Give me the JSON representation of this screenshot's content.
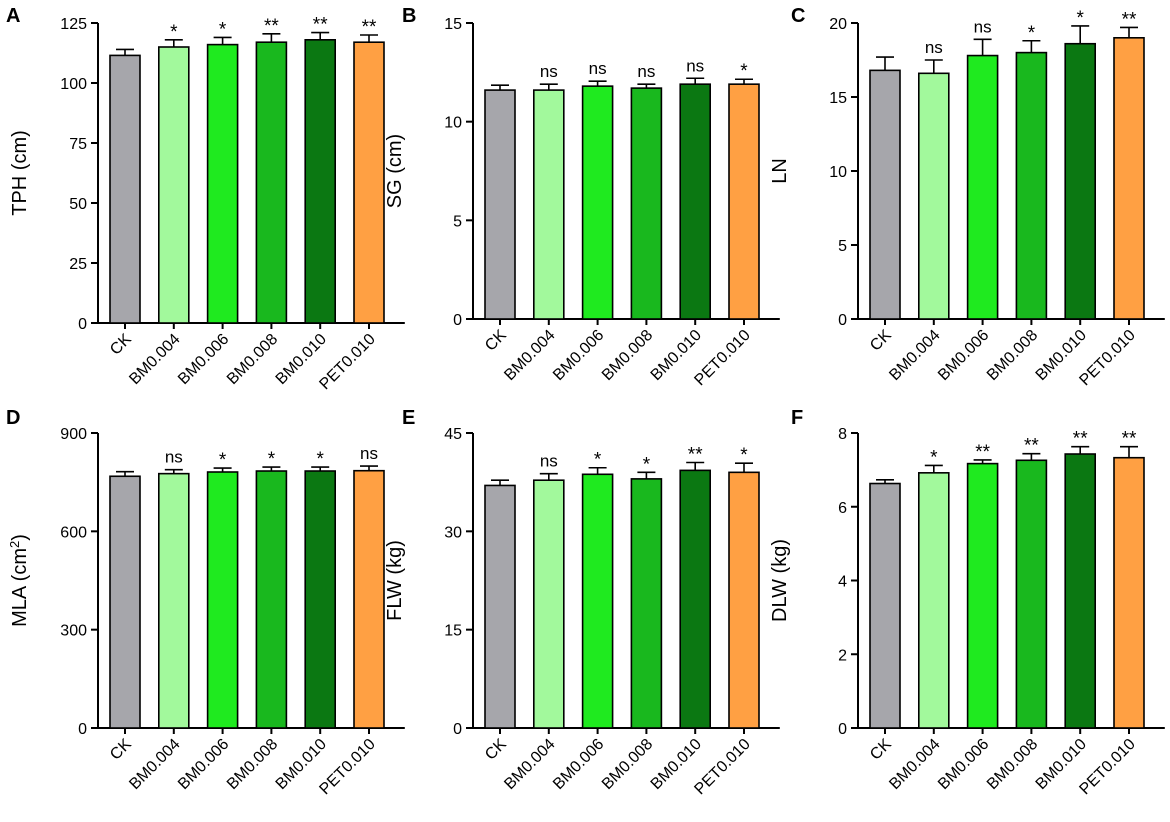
{
  "categories": [
    "CK",
    "BM0.004",
    "BM0.006",
    "BM0.008",
    "BM0.010",
    "PET0.010"
  ],
  "colors": [
    "#a6a6ab",
    "#a2f99c",
    "#1fea1f",
    "#19b81e",
    "#0b7812",
    "#ffa043"
  ],
  "chart_data": [
    {
      "type": "bar",
      "panel": "A",
      "ylabel": "TPH (cm)",
      "ylabel_sup": "",
      "ylim": [
        0,
        125
      ],
      "yticks": [
        0,
        25,
        50,
        75,
        100,
        125
      ],
      "values": [
        111.5,
        115.0,
        116.0,
        117.0,
        118.0,
        117.0
      ],
      "errors": [
        2.5,
        3.0,
        3.0,
        3.5,
        3.0,
        3.0
      ],
      "sig": [
        "",
        "*",
        "*",
        "**",
        "**",
        "**"
      ]
    },
    {
      "type": "bar",
      "panel": "B",
      "ylabel": "SG (cm)",
      "ylabel_sup": "",
      "ylim": [
        0,
        15
      ],
      "yticks": [
        0,
        5,
        10,
        15
      ],
      "values": [
        11.6,
        11.6,
        11.8,
        11.7,
        11.9,
        11.9
      ],
      "errors": [
        0.25,
        0.3,
        0.25,
        0.2,
        0.3,
        0.25
      ],
      "sig": [
        "",
        "ns",
        "ns",
        "ns",
        "ns",
        "*"
      ]
    },
    {
      "type": "bar",
      "panel": "C",
      "ylabel": "LN",
      "ylabel_sup": "",
      "ylim": [
        0,
        20
      ],
      "yticks": [
        0,
        5,
        10,
        15,
        20
      ],
      "values": [
        16.8,
        16.6,
        17.8,
        18.0,
        18.6,
        19.0
      ],
      "errors": [
        0.9,
        0.9,
        1.1,
        0.8,
        1.2,
        0.7
      ],
      "sig": [
        "",
        "ns",
        "ns",
        "*",
        "*",
        "**"
      ]
    },
    {
      "type": "bar",
      "panel": "D",
      "ylabel": "MLA (cm",
      "ylabel_sup": "2",
      "ylabel_suffix": ")",
      "ylim": [
        0,
        900
      ],
      "yticks": [
        0,
        300,
        600,
        900
      ],
      "values": [
        768,
        776,
        781,
        784,
        784,
        785
      ],
      "errors": [
        14,
        12,
        12,
        12,
        12,
        14
      ],
      "sig": [
        "",
        "ns",
        "*",
        "*",
        "*",
        "ns"
      ]
    },
    {
      "type": "bar",
      "panel": "E",
      "ylabel": "FLW (kg)",
      "ylabel_sup": "",
      "ylim": [
        0,
        45
      ],
      "yticks": [
        0,
        15,
        30,
        45
      ],
      "values": [
        37.0,
        37.8,
        38.7,
        38.0,
        39.3,
        39.0
      ],
      "errors": [
        0.8,
        1.0,
        1.0,
        1.0,
        1.2,
        1.4
      ],
      "sig": [
        "",
        "ns",
        "*",
        "*",
        "**",
        "*"
      ]
    },
    {
      "type": "bar",
      "panel": "F",
      "ylabel": "DLW (kg)",
      "ylabel_sup": "",
      "ylim": [
        0,
        8
      ],
      "yticks": [
        0,
        2,
        4,
        6,
        8
      ],
      "values": [
        6.63,
        6.92,
        7.17,
        7.26,
        7.43,
        7.33
      ],
      "errors": [
        0.1,
        0.2,
        0.1,
        0.18,
        0.2,
        0.3
      ],
      "sig": [
        "",
        "*",
        "**",
        "**",
        "**",
        "**"
      ]
    }
  ]
}
